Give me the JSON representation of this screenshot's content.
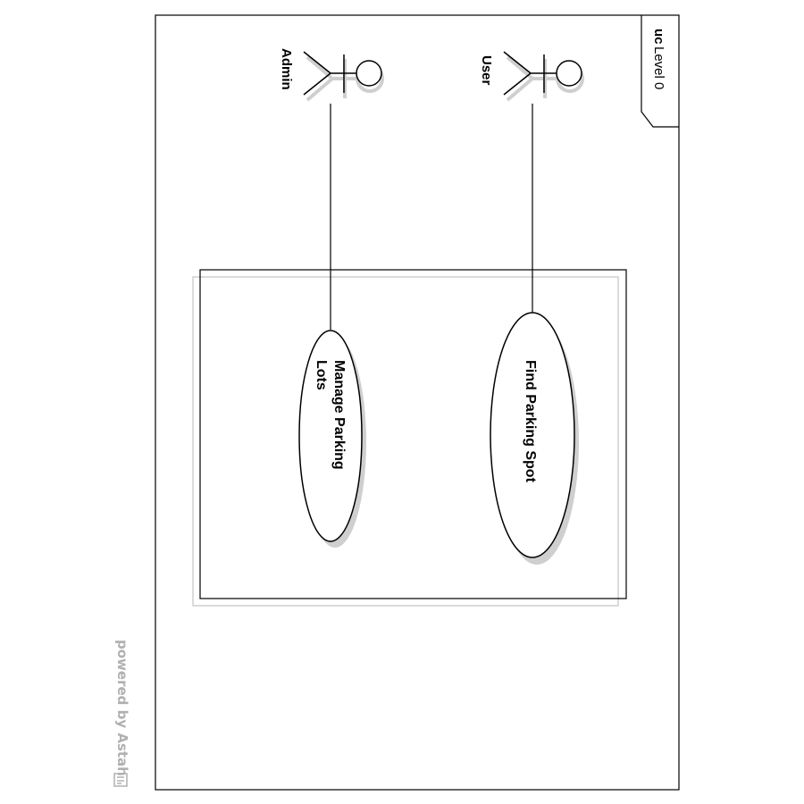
{
  "diagram": {
    "frame": {
      "keyword": "uc",
      "name": "Level 0"
    },
    "actors": [
      {
        "id": "user",
        "name": "User"
      },
      {
        "id": "admin",
        "name": "Admin"
      }
    ],
    "use_cases": [
      {
        "id": "find-parking-spot",
        "lines": [
          "Find Parking Spot"
        ]
      },
      {
        "id": "manage-parking-lots",
        "lines": [
          "Manage Parking",
          "Lots"
        ]
      }
    ],
    "associations": [
      {
        "actor": "user",
        "use_case": "find-parking-spot"
      },
      {
        "actor": "admin",
        "use_case": "manage-parking-lots"
      }
    ],
    "watermark": "powered by Astah"
  },
  "colors": {
    "line": "#000000",
    "shadow": "#c8c8c8",
    "watermark": "#b0b0b0"
  }
}
